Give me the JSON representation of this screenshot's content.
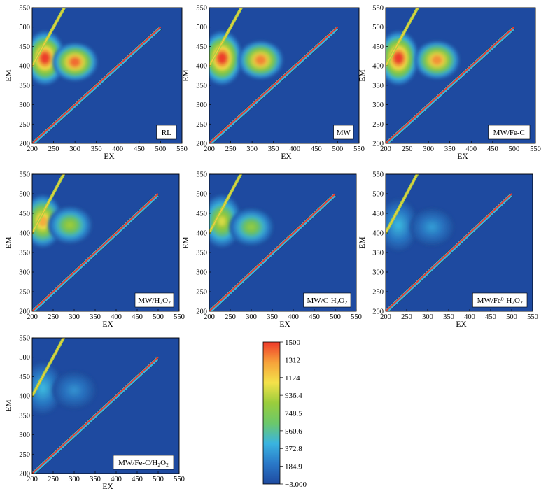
{
  "figure": {
    "axis_x_label": "EX",
    "axis_y_label": "EM",
    "x_ticks": [
      "200",
      "250",
      "300",
      "350",
      "400",
      "450",
      "500",
      "550"
    ],
    "y_ticks": [
      "200",
      "250",
      "300",
      "350",
      "400",
      "450",
      "500",
      "550"
    ]
  },
  "chart_data": [
    {
      "type": "heatmap",
      "title": "",
      "legend_label": "RL",
      "xlabel": "EX",
      "ylabel": "EM",
      "xlim": [
        200,
        550
      ],
      "ylim": [
        200,
        550
      ],
      "peaks": [
        {
          "ex": 230,
          "em": 420,
          "intensity": 1500
        },
        {
          "ex": 300,
          "em": 410,
          "intensity": 1400
        }
      ],
      "rayleigh_band": [
        [
          200,
          200
        ],
        [
          500,
          500
        ]
      ],
      "second_order_band": [
        [
          200,
          400
        ],
        [
          275,
          550
        ]
      ]
    },
    {
      "type": "heatmap",
      "title": "",
      "legend_label": "MW",
      "xlabel": "EX",
      "ylabel": "EM",
      "xlim": [
        200,
        550
      ],
      "ylim": [
        200,
        550
      ],
      "peaks": [
        {
          "ex": 230,
          "em": 420,
          "intensity": 1500
        },
        {
          "ex": 320,
          "em": 415,
          "intensity": 1350
        }
      ],
      "rayleigh_band": [
        [
          200,
          200
        ],
        [
          500,
          500
        ]
      ],
      "second_order_band": [
        [
          200,
          400
        ],
        [
          275,
          550
        ]
      ]
    },
    {
      "type": "heatmap",
      "title": "",
      "legend_label": "MW/Fe-C",
      "xlabel": "EX",
      "ylabel": "EM",
      "xlim": [
        200,
        550
      ],
      "ylim": [
        200,
        550
      ],
      "peaks": [
        {
          "ex": 230,
          "em": 420,
          "intensity": 1500
        },
        {
          "ex": 320,
          "em": 415,
          "intensity": 1320
        }
      ],
      "rayleigh_band": [
        [
          200,
          200
        ],
        [
          500,
          500
        ]
      ],
      "second_order_band": [
        [
          200,
          400
        ],
        [
          275,
          550
        ]
      ]
    },
    {
      "type": "heatmap",
      "title": "",
      "legend_label": "MW/H2O2",
      "legend_parts": [
        {
          "t": "MW/H"
        },
        {
          "t": "2",
          "sub": true
        },
        {
          "t": "O"
        },
        {
          "t": "2",
          "sub": true
        }
      ],
      "xlabel": "EX",
      "ylabel": "EM",
      "xlim": [
        200,
        550
      ],
      "ylim": [
        200,
        550
      ],
      "peaks": [
        {
          "ex": 225,
          "em": 430,
          "intensity": 1250
        },
        {
          "ex": 290,
          "em": 420,
          "intensity": 850
        }
      ],
      "rayleigh_band": [
        [
          200,
          200
        ],
        [
          500,
          500
        ]
      ],
      "second_order_band": [
        [
          200,
          400
        ],
        [
          275,
          550
        ]
      ]
    },
    {
      "type": "heatmap",
      "title": "",
      "legend_label": "MW/C-H2O2",
      "legend_parts": [
        {
          "t": "MW/C-H"
        },
        {
          "t": "2",
          "sub": true
        },
        {
          "t": "O"
        },
        {
          "t": "2",
          "sub": true
        }
      ],
      "xlabel": "EX",
      "ylabel": "EM",
      "xlim": [
        200,
        550
      ],
      "ylim": [
        200,
        550
      ],
      "peaks": [
        {
          "ex": 230,
          "em": 430,
          "intensity": 1000
        },
        {
          "ex": 300,
          "em": 415,
          "intensity": 800
        }
      ],
      "rayleigh_band": [
        [
          200,
          200
        ],
        [
          500,
          500
        ]
      ],
      "second_order_band": [
        [
          200,
          400
        ],
        [
          275,
          550
        ]
      ]
    },
    {
      "type": "heatmap",
      "title": "",
      "legend_label": "MW/Fe0-H2O2",
      "legend_parts": [
        {
          "t": "MW/Fe"
        },
        {
          "t": "0",
          "sup": true
        },
        {
          "t": "-H"
        },
        {
          "t": "2",
          "sub": true
        },
        {
          "t": "O"
        },
        {
          "t": "2",
          "sub": true
        }
      ],
      "xlabel": "EX",
      "ylabel": "EM",
      "xlim": [
        200,
        550
      ],
      "ylim": [
        200,
        550
      ],
      "peaks": [
        {
          "ex": 230,
          "em": 420,
          "intensity": 420
        },
        {
          "ex": 310,
          "em": 415,
          "intensity": 330
        }
      ],
      "rayleigh_band": [
        [
          200,
          200
        ],
        [
          500,
          500
        ]
      ],
      "second_order_band": [
        [
          200,
          400
        ],
        [
          275,
          550
        ]
      ]
    },
    {
      "type": "heatmap",
      "title": "",
      "legend_label": "MW/Fe-C/H2O2",
      "legend_parts": [
        {
          "t": "MW/Fe-C/H"
        },
        {
          "t": "2",
          "sub": true
        },
        {
          "t": "O"
        },
        {
          "t": "2",
          "sub": true
        }
      ],
      "xlabel": "EX",
      "ylabel": "EM",
      "xlim": [
        200,
        550
      ],
      "ylim": [
        200,
        550
      ],
      "peaks": [
        {
          "ex": 225,
          "em": 420,
          "intensity": 430
        },
        {
          "ex": 300,
          "em": 415,
          "intensity": 290
        }
      ],
      "rayleigh_band": [
        [
          200,
          200
        ],
        [
          500,
          500
        ]
      ],
      "second_order_band": [
        [
          200,
          400
        ],
        [
          275,
          550
        ]
      ]
    }
  ],
  "colorbar": {
    "tick_labels": [
      "1500",
      "1312",
      "1124",
      "936.4",
      "748.5",
      "560.6",
      "372.8",
      "184.9",
      "−3.000"
    ],
    "tick_values": [
      1500,
      1312,
      1124,
      936.4,
      748.5,
      560.6,
      372.8,
      184.9,
      -3.0
    ],
    "min": -3.0,
    "max": 1500,
    "colors": [
      "#1e4aa0",
      "#2a78c8",
      "#3ab4e0",
      "#6cc86a",
      "#9acd3c",
      "#f4e24a",
      "#f7a23a",
      "#ef3a2a"
    ]
  }
}
